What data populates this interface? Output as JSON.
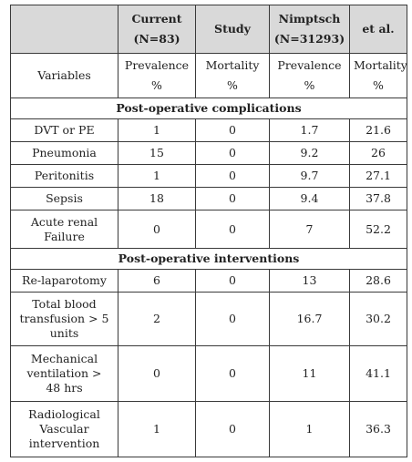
{
  "header": {
    "col1": "",
    "col2_line1": "Current",
    "col2_line2": "(N=83)",
    "col3": "Study",
    "col4_line1": "Nimptsch",
    "col4_line2": "(N=31293)",
    "col5": "et al."
  },
  "subheader": {
    "variables": "Variables",
    "c2_line1": "Prevalence",
    "c2_line2": "%",
    "c3_line1": "Mortality",
    "c3_line2": "%",
    "c4_line1": "Prevalence",
    "c4_line2": "%",
    "c5_line1": "Mortality",
    "c5_line2": "%"
  },
  "sections": [
    {
      "title": "Post-operative complications",
      "rows": [
        {
          "label": "DVT or PE",
          "current_prev": "1",
          "current_mort": "0",
          "nimptsch_prev": "1.7",
          "nimptsch_mort": "21.6"
        },
        {
          "label": "Pneumonia",
          "current_prev": "15",
          "current_mort": "0",
          "nimptsch_prev": "9.2",
          "nimptsch_mort": "26"
        },
        {
          "label": "Peritonitis",
          "current_prev": "1",
          "current_mort": "0",
          "nimptsch_prev": "9.7",
          "nimptsch_mort": "27.1"
        },
        {
          "label": "Sepsis",
          "current_prev": "18",
          "current_mort": "0",
          "nimptsch_prev": "9.4",
          "nimptsch_mort": "37.8"
        },
        {
          "label_line1": "Acute renal",
          "label_line2": "Failure",
          "current_prev": "0",
          "current_mort": "0",
          "nimptsch_prev": "7",
          "nimptsch_mort": "52.2"
        }
      ]
    },
    {
      "title": "Post-operative interventions",
      "rows": [
        {
          "label": "Re-laparotomy",
          "current_prev": "6",
          "current_mort": "0",
          "nimptsch_prev": "13",
          "nimptsch_mort": "28.6"
        },
        {
          "label_line1": "Total blood",
          "label_line2": "transfusion > 5",
          "label_line3": "units",
          "current_prev": "2",
          "current_mort": "0",
          "nimptsch_prev": "16.7",
          "nimptsch_mort": "30.2"
        },
        {
          "label_line1": "Mechanical",
          "label_line2": "ventilation >",
          "label_line3": "48 hrs",
          "current_prev": "0",
          "current_mort": "0",
          "nimptsch_prev": "11",
          "nimptsch_mort": "41.1"
        },
        {
          "label_line1": "Radiological",
          "label_line2": "Vascular",
          "label_line3": "intervention",
          "current_prev": "1",
          "current_mort": "0",
          "nimptsch_prev": "1",
          "nimptsch_mort": "36.3"
        }
      ]
    }
  ]
}
